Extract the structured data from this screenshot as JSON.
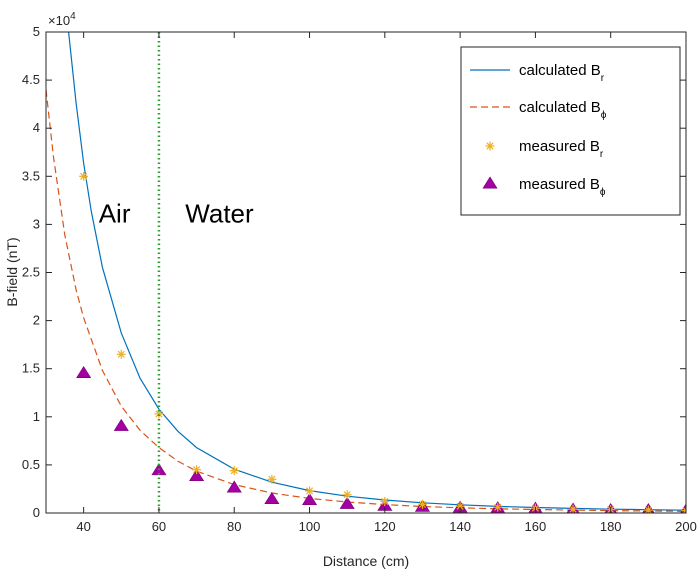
{
  "chart_data": {
    "type": "line",
    "xlabel": "Distance (cm)",
    "ylabel": "B-field (nT)",
    "y_exponent_label": "×10",
    "y_exponent": "4",
    "y_scale": 10000,
    "xlim": [
      30,
      200
    ],
    "ylim": [
      0,
      50000
    ],
    "x_ticks": [
      40,
      60,
      80,
      100,
      120,
      140,
      160,
      180,
      200
    ],
    "y_ticks": [
      0,
      5000,
      10000,
      15000,
      20000,
      25000,
      30000,
      35000,
      40000,
      45000,
      50000
    ],
    "y_tick_labels": [
      "0",
      "0.5",
      "1",
      "1.5",
      "2",
      "2.5",
      "3",
      "3.5",
      "4",
      "4.5",
      "5"
    ],
    "boundary_x": 60,
    "annotations": [
      {
        "text": "Air",
        "x": 44,
        "y": 30200
      },
      {
        "text": "Water",
        "x": 67,
        "y": 30200
      }
    ],
    "legend_position": "top-right",
    "series": [
      {
        "name": "calculated B",
        "subscript": "r",
        "style": "solid-line",
        "color": "#0072bd",
        "x": [
          36,
          38,
          40,
          42,
          45,
          50,
          55,
          60,
          65,
          70,
          80,
          90,
          100,
          110,
          120,
          130,
          140,
          150,
          160,
          170,
          180,
          190,
          200
        ],
        "y": [
          50000,
          42600,
          36400,
          31400,
          25500,
          18700,
          14000,
          10800,
          8500,
          6800,
          4550,
          3200,
          2330,
          1750,
          1350,
          1060,
          850,
          690,
          570,
          475,
          400,
          340,
          290
        ]
      },
      {
        "name": "calculated B",
        "subscript": "ϕ",
        "style": "dashed-line",
        "color": "#d95319",
        "x": [
          30,
          32,
          35,
          38,
          40,
          45,
          50,
          55,
          60,
          65,
          70,
          80,
          90,
          100,
          110,
          120,
          130,
          140,
          150,
          160,
          170,
          180,
          190,
          200
        ],
        "y": [
          44000,
          37000,
          28900,
          23200,
          20300,
          14800,
          11100,
          8600,
          6800,
          5400,
          4350,
          2950,
          2080,
          1520,
          1140,
          870,
          680,
          540,
          440,
          360,
          300,
          250,
          210,
          180
        ]
      },
      {
        "name": "measured B",
        "subscript": "r",
        "style": "asterisk-marker",
        "color": "#edb120",
        "x": [
          40,
          50,
          60,
          70,
          80,
          90,
          100,
          110,
          120,
          130,
          140,
          150,
          160,
          170,
          180,
          190,
          200
        ],
        "y": [
          35000,
          16500,
          10300,
          4500,
          4400,
          3500,
          2300,
          1900,
          1200,
          900,
          700,
          600,
          500,
          400,
          350,
          300,
          250
        ]
      },
      {
        "name": "measured B",
        "subscript": "ϕ",
        "style": "triangle-marker",
        "color": "#a300a3",
        "x": [
          40,
          50,
          60,
          70,
          80,
          90,
          100,
          110,
          120,
          130,
          140,
          150,
          160,
          170,
          180,
          190,
          200
        ],
        "y": [
          14500,
          9000,
          4400,
          3800,
          2600,
          1400,
          1300,
          900,
          700,
          600,
          500,
          450,
          400,
          300,
          250,
          250,
          200
        ]
      }
    ]
  }
}
